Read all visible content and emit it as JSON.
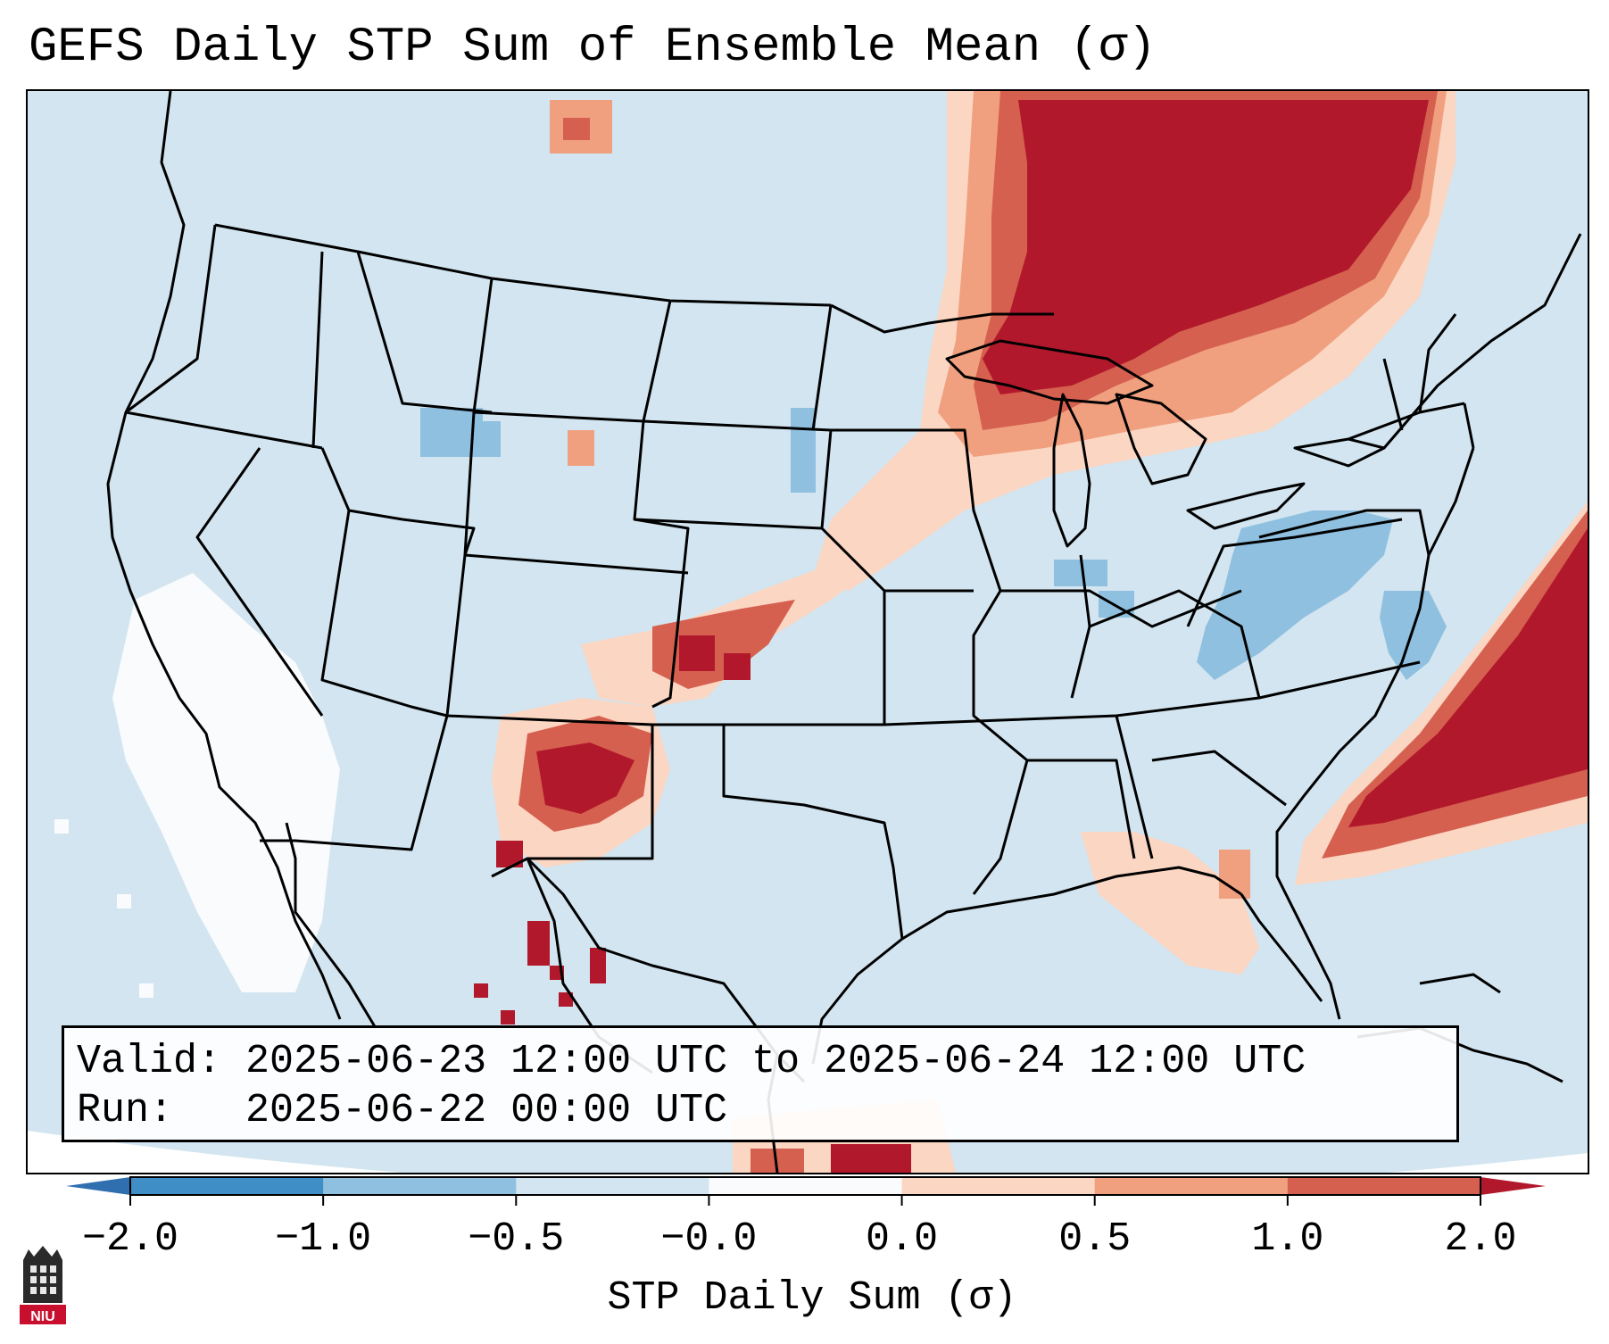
{
  "title": "GEFS Daily STP Sum of Ensemble Mean (σ)",
  "info": {
    "valid_label": "Valid:",
    "valid_value": "2025-06-23 12:00 UTC to 2025-06-24 12:00 UTC",
    "run_label": "Run:",
    "run_value": "2025-06-22 00:00 UTC"
  },
  "colorbar": {
    "label": "STP Daily Sum (σ)",
    "ticks": [
      "−2.0",
      "−1.0",
      "−0.5",
      "−0.0",
      "0.0",
      "0.5",
      "1.0",
      "2.0"
    ],
    "bin_colors": [
      "#3f8fc6",
      "#8fc0df",
      "#d2e5f0",
      "#f9fbfd",
      "#fbd6c2",
      "#f0a07f",
      "#d5604f"
    ],
    "under_color": "#2f6fb0",
    "over_color": "#b2182b"
  },
  "map": {
    "background_color": "#d2e5f0",
    "line_color": "#000000"
  },
  "logo": {
    "text": "NIU",
    "icon": "niu-logo-icon"
  }
}
